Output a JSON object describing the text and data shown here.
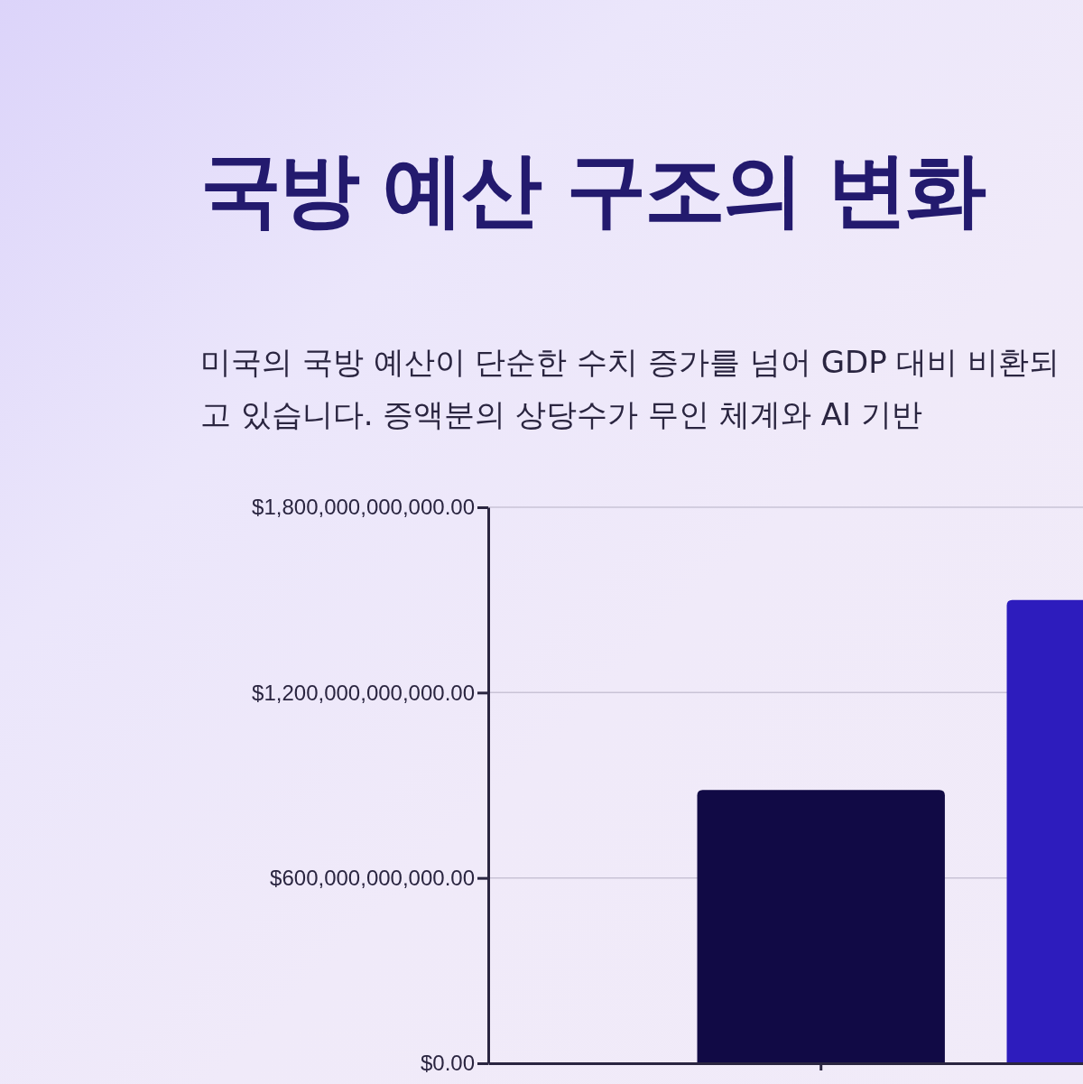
{
  "chart_data": {
    "type": "bar",
    "title": "국방 예산 구조의 변화",
    "subtitle": "미국의 국방 예산이 단순한 수치 증가를 넘어 GDP 대비 비환되고 있습니다. 증액분의 상당수가 무인 체계와 AI 기반",
    "categories": [
      null,
      null
    ],
    "values": [
      885000000000,
      1500000000000
    ],
    "colors": [
      "#110a45",
      "#2d1cbd"
    ],
    "ylim": [
      0,
      1800000000000
    ],
    "yticks": [
      {
        "value": 0,
        "label": "$0.00"
      },
      {
        "value": 600000000000,
        "label": "$600,000,000,000.00"
      },
      {
        "value": 1200000000000,
        "label": "$1,200,000,000,000.00"
      },
      {
        "value": 1800000000000,
        "label": "$1,800,000,000,000.00"
      }
    ],
    "grid": "y"
  }
}
